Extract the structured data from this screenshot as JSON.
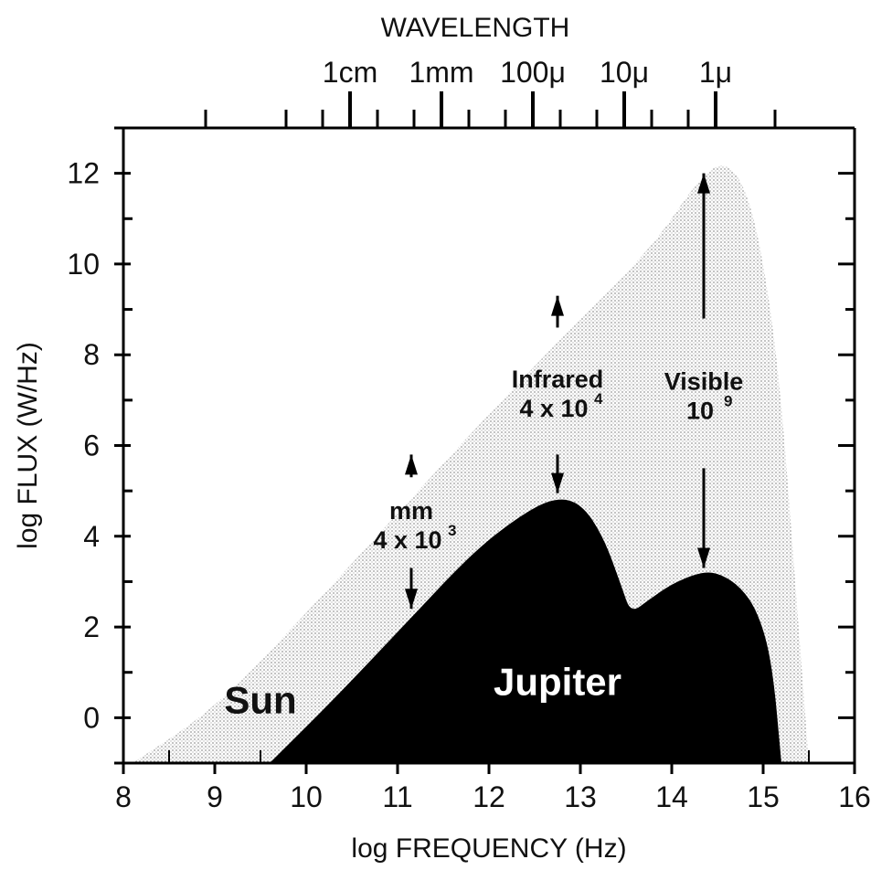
{
  "chart_data": {
    "type": "area",
    "title": "",
    "xlabel": "log FREQUENCY (Hz)",
    "ylabel": "log FLUX (W/Hz)",
    "top_axis_label": "WAVELENGTH",
    "xlim": [
      8,
      16
    ],
    "ylim": [
      -1,
      13
    ],
    "x_ticks": [
      8,
      9,
      10,
      11,
      12,
      13,
      14,
      15,
      16
    ],
    "y_ticks": [
      0,
      2,
      4,
      6,
      8,
      10,
      12
    ],
    "wavelength_ticks": [
      {
        "label": "1cm",
        "log_freq": 10.48
      },
      {
        "label": "1mm",
        "log_freq": 11.48
      },
      {
        "label": "100μ",
        "log_freq": 12.48
      },
      {
        "label": "10μ",
        "log_freq": 13.48
      },
      {
        "label": "1μ",
        "log_freq": 14.48
      }
    ],
    "series": [
      {
        "name": "Sun",
        "fill": "#cfcfcf",
        "points": [
          [
            8.1,
            -1
          ],
          [
            9.0,
            0.2
          ],
          [
            10.0,
            2.3
          ],
          [
            11.0,
            4.5
          ],
          [
            12.0,
            6.7
          ],
          [
            13.0,
            8.8
          ],
          [
            13.8,
            10.4
          ],
          [
            14.3,
            11.9
          ],
          [
            14.6,
            12.3
          ],
          [
            14.85,
            11.5
          ],
          [
            15.05,
            9.5
          ],
          [
            15.2,
            7
          ],
          [
            15.35,
            3
          ],
          [
            15.5,
            -1
          ]
        ]
      },
      {
        "name": "Jupiter",
        "fill": "#000000",
        "points": [
          [
            9.6,
            -1
          ],
          [
            10.3,
            0.4
          ],
          [
            11.1,
            2.1
          ],
          [
            11.8,
            3.6
          ],
          [
            12.3,
            4.4
          ],
          [
            12.7,
            4.85
          ],
          [
            13.0,
            4.75
          ],
          [
            13.25,
            4.0
          ],
          [
            13.45,
            2.9
          ],
          [
            13.55,
            2.3
          ],
          [
            13.75,
            2.6
          ],
          [
            14.0,
            2.95
          ],
          [
            14.3,
            3.2
          ],
          [
            14.5,
            3.2
          ],
          [
            14.75,
            2.9
          ],
          [
            14.95,
            2.3
          ],
          [
            15.1,
            1.2
          ],
          [
            15.2,
            -1
          ]
        ]
      }
    ],
    "annotations": [
      {
        "lines": [
          "mm",
          "4 x 10",
          "3"
        ],
        "arrow_x": 11.15,
        "up_from": 5.3,
        "up_to": 5.8,
        "down_from": 3.3,
        "down_to": 2.4
      },
      {
        "lines": [
          "Infrared",
          "4 x 10",
          "4"
        ],
        "arrow_x": 12.75,
        "up_from": 8.6,
        "up_to": 9.3,
        "down_from": 5.8,
        "down_to": 4.95
      },
      {
        "lines": [
          "Visible",
          "10",
          "9"
        ],
        "arrow_x": 14.35,
        "up_from": 8.8,
        "up_to": 12.0,
        "down_from": 5.5,
        "down_to": 3.3
      }
    ]
  }
}
